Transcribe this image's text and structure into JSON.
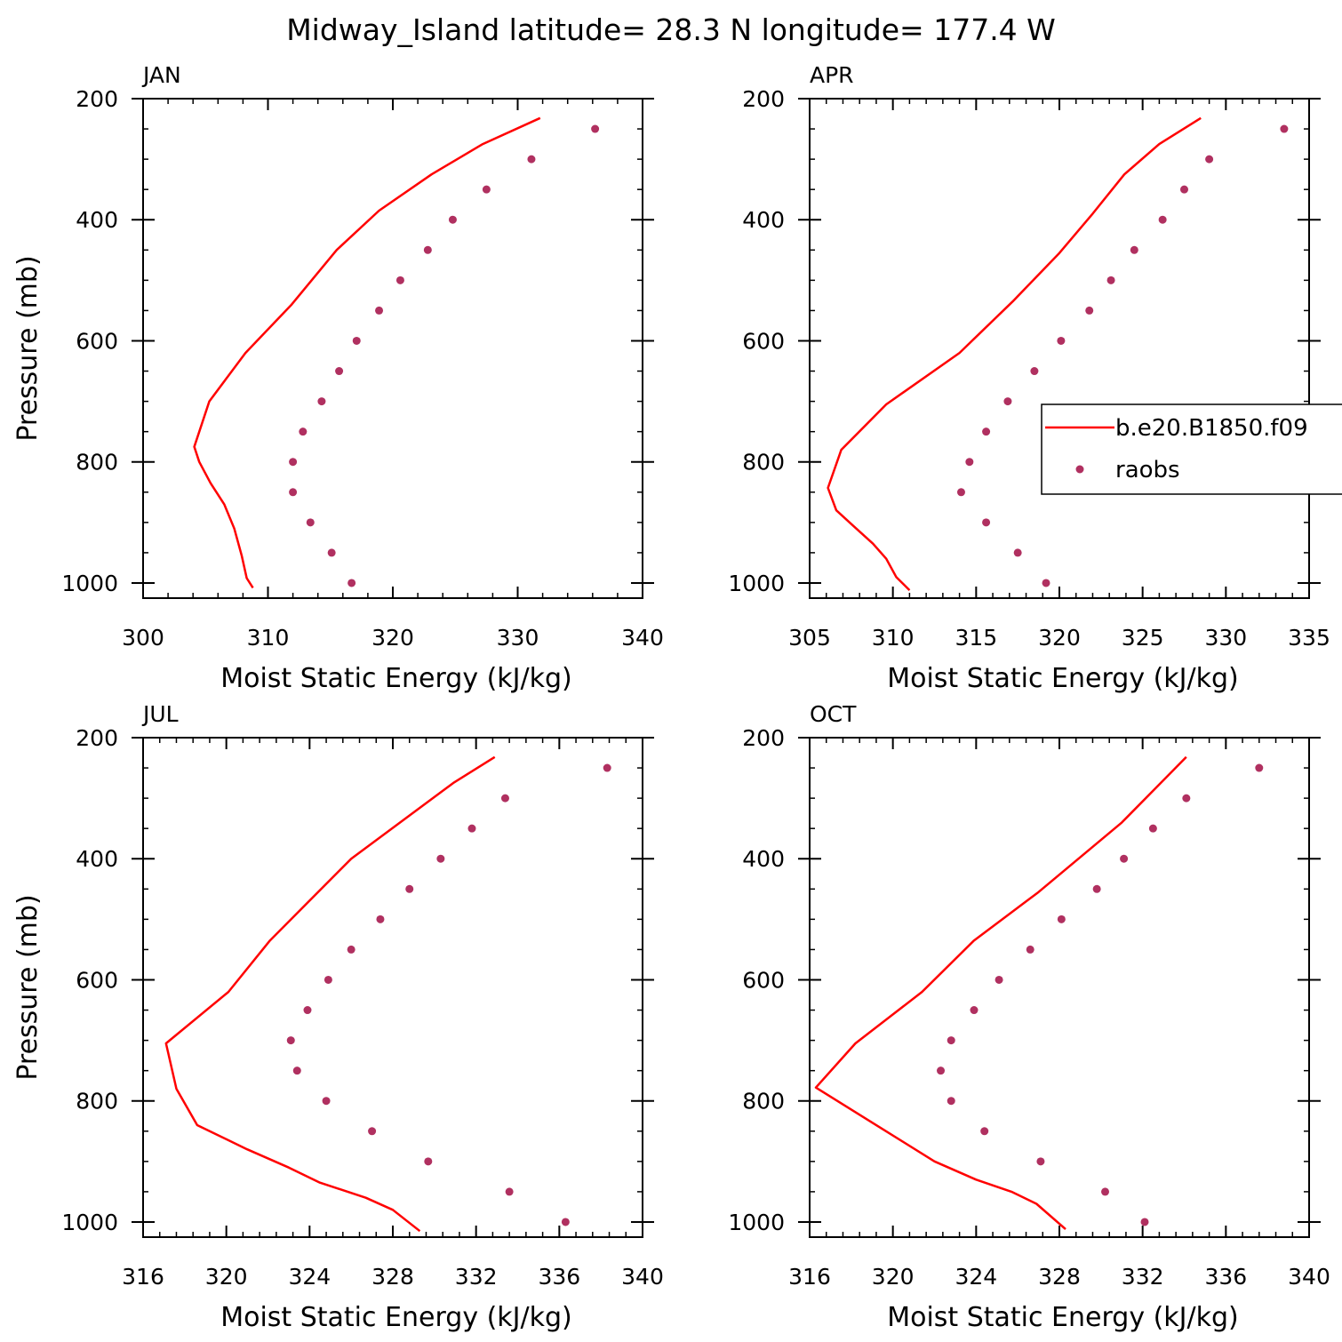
{
  "title": "Midway_Island  latitude= 28.3 N longitude= 177.4 W",
  "colors": {
    "model": "#ff0000",
    "obs": "#b03060",
    "axis": "#000000"
  },
  "legend": {
    "model_label": "b.e20.B1850.f09",
    "obs_label": "raobs"
  },
  "chart_data": [
    {
      "type": "line",
      "month": "JAN",
      "xlabel": "Moist Static Energy (kJ/kg)",
      "ylabel": "Pressure (mb)",
      "xlim": [
        300,
        340
      ],
      "ylim": [
        1025,
        200
      ],
      "xticks": [
        300,
        310,
        320,
        330,
        340
      ],
      "yticks": [
        200,
        400,
        600,
        800,
        1000
      ],
      "model": {
        "name": "b.e20.B1850.f09",
        "x": [
          308.8,
          308.3,
          307.9,
          307.3,
          306.5,
          305.4,
          304.5,
          304.1,
          305.3,
          308.2,
          311.9,
          315.5,
          318.9,
          323.1,
          327.2,
          331.8
        ],
        "p": [
          1008,
          992,
          955,
          910,
          870,
          835,
          800,
          775,
          700,
          620,
          540,
          450,
          385,
          325,
          275,
          232
        ]
      },
      "obs": {
        "name": "raobs",
        "x": [
          316.7,
          315.1,
          313.4,
          312.0,
          312.0,
          312.8,
          314.3,
          315.7,
          317.1,
          318.9,
          320.6,
          322.8,
          324.8,
          327.5,
          331.1,
          336.2
        ],
        "p": [
          1000,
          950,
          900,
          850,
          800,
          750,
          700,
          650,
          600,
          550,
          500,
          450,
          400,
          350,
          300,
          250
        ]
      }
    },
    {
      "type": "line",
      "month": "APR",
      "xlabel": "Moist Static Energy (kJ/kg)",
      "ylabel": "",
      "xlim": [
        305,
        335
      ],
      "ylim": [
        1025,
        200
      ],
      "xticks": [
        305,
        310,
        315,
        320,
        325,
        330,
        335
      ],
      "yticks": [
        200,
        400,
        600,
        800,
        1000
      ],
      "model": {
        "name": "b.e20.B1850.f09",
        "x": [
          311.0,
          310.2,
          309.6,
          308.8,
          307.6,
          306.6,
          306.1,
          306.9,
          309.6,
          314.0,
          317.2,
          320.0,
          322.0,
          323.9,
          326.0,
          328.5
        ],
        "p": [
          1012,
          990,
          960,
          935,
          905,
          880,
          843,
          780,
          705,
          620,
          535,
          455,
          390,
          325,
          275,
          232
        ]
      },
      "obs": {
        "name": "raobs",
        "x": [
          319.2,
          317.5,
          315.6,
          314.1,
          314.6,
          315.6,
          316.9,
          318.5,
          320.1,
          321.8,
          323.1,
          324.5,
          326.2,
          327.5,
          329.0,
          333.5
        ],
        "p": [
          1000,
          950,
          900,
          850,
          800,
          750,
          700,
          650,
          600,
          550,
          500,
          450,
          400,
          350,
          300,
          250
        ]
      }
    },
    {
      "type": "line",
      "month": "JUL",
      "xlabel": "Moist Static Energy (kJ/kg)",
      "ylabel": "Pressure (mb)",
      "xlim": [
        316,
        340
      ],
      "ylim": [
        1025,
        200
      ],
      "xticks": [
        316,
        320,
        324,
        328,
        332,
        336,
        340
      ],
      "yticks": [
        200,
        400,
        600,
        800,
        1000
      ],
      "model": {
        "name": "b.e20.B1850.f09",
        "x": [
          329.3,
          328.0,
          326.7,
          324.5,
          323.0,
          321.0,
          318.6,
          317.6,
          317.1,
          320.1,
          322.1,
          326.0,
          330.9,
          332.9
        ],
        "p": [
          1015,
          980,
          960,
          935,
          910,
          880,
          840,
          780,
          705,
          620,
          535,
          400,
          275,
          232
        ]
      },
      "obs": {
        "name": "raobs",
        "x": [
          336.3,
          333.6,
          329.7,
          327.0,
          324.8,
          323.4,
          323.1,
          323.9,
          324.9,
          326.0,
          327.4,
          328.8,
          330.3,
          331.8,
          333.4,
          338.3
        ],
        "p": [
          1000,
          950,
          900,
          850,
          800,
          750,
          700,
          650,
          600,
          550,
          500,
          450,
          400,
          350,
          300,
          250
        ]
      }
    },
    {
      "type": "line",
      "month": "OCT",
      "xlabel": "Moist Static Energy (kJ/kg)",
      "ylabel": "",
      "xlim": [
        316,
        340
      ],
      "ylim": [
        1025,
        200
      ],
      "xticks": [
        316,
        320,
        324,
        328,
        332,
        336,
        340
      ],
      "yticks": [
        200,
        400,
        600,
        800,
        1000
      ],
      "model": {
        "name": "b.e20.B1850.f09",
        "x": [
          328.3,
          326.9,
          325.7,
          324.0,
          322.0,
          316.3,
          318.2,
          321.4,
          323.9,
          327.0,
          331.0,
          334.1
        ],
        "p": [
          1012,
          970,
          950,
          930,
          900,
          778,
          705,
          620,
          535,
          455,
          340,
          232
        ]
      },
      "obs": {
        "name": "raobs",
        "x": [
          332.1,
          330.2,
          327.1,
          324.4,
          322.8,
          322.3,
          322.8,
          323.9,
          325.1,
          326.6,
          328.1,
          329.8,
          331.1,
          332.5,
          334.1,
          337.6
        ],
        "p": [
          1000,
          950,
          900,
          850,
          800,
          750,
          700,
          650,
          600,
          550,
          500,
          450,
          400,
          350,
          300,
          250
        ]
      }
    }
  ]
}
